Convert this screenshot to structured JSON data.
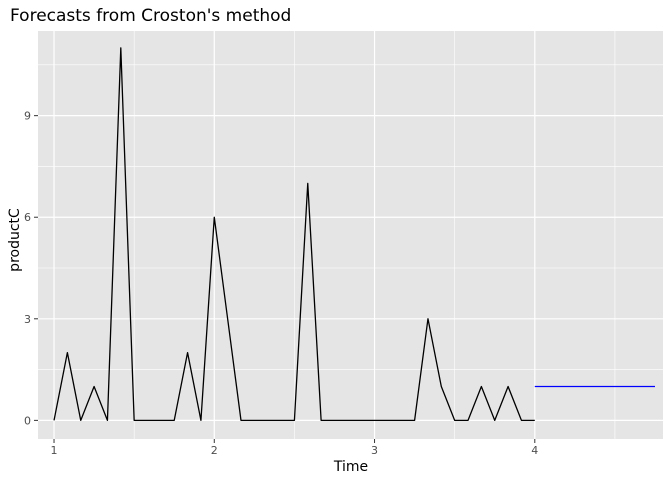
{
  "chart_data": {
    "type": "line",
    "title": "Forecasts from Croston's method",
    "xlabel": "Time",
    "ylabel": "productC",
    "xlim": [
      0.9,
      4.8
    ],
    "ylim": [
      -0.55,
      11.5
    ],
    "x_ticks": [
      1,
      2,
      3,
      4
    ],
    "x_tick_labels": [
      "1",
      "2",
      "3",
      "4"
    ],
    "y_ticks": [
      0,
      3,
      6,
      9
    ],
    "y_tick_labels": [
      "0",
      "3",
      "6",
      "9"
    ],
    "grid": true,
    "background": "#e5e5e5",
    "grid_color": "#ffffff",
    "series": [
      {
        "role": "observed",
        "color": "#000000",
        "x_start": 1,
        "x_step": 0.0833333,
        "values": [
          0,
          2,
          0,
          1,
          0,
          11,
          0,
          0,
          0,
          0,
          2,
          0,
          6,
          3,
          0,
          0,
          0,
          0,
          0,
          7,
          0,
          0,
          0,
          0,
          0,
          0,
          0,
          0,
          3,
          1,
          0,
          0,
          1,
          0,
          1,
          0,
          0
        ]
      },
      {
        "role": "forecast",
        "color": "#0000ff",
        "x": [
          4,
          4.75
        ],
        "values": [
          1,
          1
        ]
      }
    ]
  }
}
